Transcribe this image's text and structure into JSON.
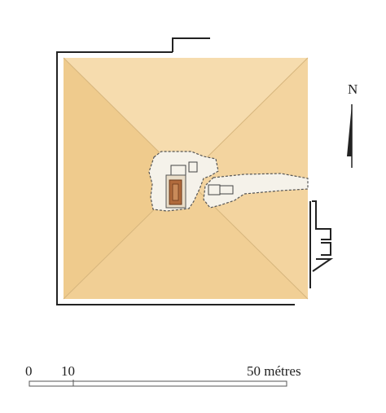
{
  "north_label": "N",
  "scale": {
    "tick_0": "0",
    "tick_10": "10",
    "tick_50": "50 métres"
  },
  "colors": {
    "face_north": "#f6dcae",
    "face_west": "#efcb8d",
    "face_south": "#f1cf95",
    "face_east": "#f3d49f",
    "edge": "#d6b57d",
    "chamber_fill": "#f5f2ea",
    "sarcophagus": "#b06a3c",
    "outline": "#222222"
  }
}
